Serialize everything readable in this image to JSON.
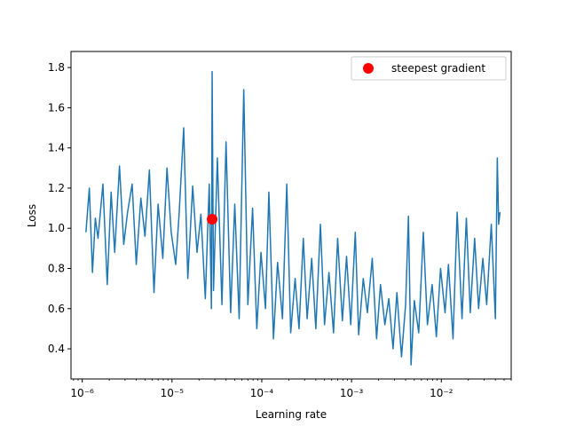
{
  "chart_data": {
    "type": "line",
    "xlabel": "Learning rate",
    "ylabel": "Loss",
    "x_scale": "log",
    "xlim": [
      7.5e-07,
      0.06
    ],
    "ylim": [
      0.25,
      1.88
    ],
    "grid": false,
    "legend_position": "top-right",
    "colors": {
      "line": "#1f77b4",
      "marker": "#ff0000"
    },
    "x_ticks": [
      {
        "value": 1e-06,
        "label": "10⁻⁶"
      },
      {
        "value": 1e-05,
        "label": "10⁻⁵"
      },
      {
        "value": 0.0001,
        "label": "10⁻⁴"
      },
      {
        "value": 0.001,
        "label": "10⁻³"
      },
      {
        "value": 0.01,
        "label": "10⁻²"
      }
    ],
    "y_ticks": [
      {
        "value": 0.4,
        "label": "0.4"
      },
      {
        "value": 0.6,
        "label": "0.6"
      },
      {
        "value": 0.8,
        "label": "0.8"
      },
      {
        "value": 1.0,
        "label": "1.0"
      },
      {
        "value": 1.2,
        "label": "1.2"
      },
      {
        "value": 1.4,
        "label": "1.4"
      },
      {
        "value": 1.6,
        "label": "1.6"
      },
      {
        "value": 1.8,
        "label": "1.8"
      }
    ],
    "series": [
      {
        "type": "line",
        "x": [
          1.1e-06,
          1.2e-06,
          1.3e-06,
          1.4e-06,
          1.5e-06,
          1.7e-06,
          1.9e-06,
          2.1e-06,
          2.3e-06,
          2.6e-06,
          2.9e-06,
          3.2e-06,
          3.6e-06,
          4e-06,
          4.5e-06,
          5e-06,
          5.6e-06,
          6.3e-06,
          7e-06,
          7.9e-06,
          8.8e-06,
          9.8e-06,
          1.1e-05,
          1.2e-05,
          1.35e-05,
          1.5e-05,
          1.7e-05,
          1.9e-05,
          2.1e-05,
          2.35e-05,
          2.6e-05,
          2.75e-05,
          2.8e-05,
          2.9e-05,
          3.2e-05,
          3.6e-05,
          4e-05,
          4.5e-05,
          5e-05,
          5.6e-05,
          6.3e-05,
          7e-05,
          7.9e-05,
          8.8e-05,
          9.8e-05,
          0.00011,
          0.00012,
          0.000135,
          0.00015,
          0.00017,
          0.00019,
          0.00021,
          0.000235,
          0.00026,
          0.00029,
          0.00032,
          0.00036,
          0.0004,
          0.00045,
          0.0005,
          0.00056,
          0.00063,
          0.0007,
          0.00079,
          0.00088,
          0.00098,
          0.0011,
          0.0012,
          0.00135,
          0.0015,
          0.0017,
          0.0019,
          0.0021,
          0.00235,
          0.0026,
          0.0029,
          0.0032,
          0.0036,
          0.004,
          0.0043,
          0.0046,
          0.005,
          0.0056,
          0.0063,
          0.007,
          0.0079,
          0.0088,
          0.0098,
          0.011,
          0.012,
          0.0135,
          0.015,
          0.017,
          0.019,
          0.021,
          0.0235,
          0.026,
          0.029,
          0.032,
          0.036,
          0.04,
          0.042,
          0.0435,
          0.045
        ],
        "y": [
          0.98,
          1.2,
          0.78,
          1.05,
          0.95,
          1.22,
          0.72,
          1.18,
          0.88,
          1.31,
          0.92,
          1.08,
          1.22,
          0.82,
          1.15,
          0.96,
          1.29,
          0.68,
          1.12,
          0.85,
          1.3,
          0.98,
          0.82,
          1.07,
          1.5,
          0.75,
          1.21,
          0.88,
          1.07,
          0.65,
          1.22,
          0.6,
          1.78,
          0.69,
          1.35,
          0.62,
          1.43,
          0.58,
          1.12,
          0.55,
          1.69,
          0.62,
          1.1,
          0.5,
          0.88,
          0.6,
          1.18,
          0.45,
          0.83,
          0.55,
          1.22,
          0.48,
          0.75,
          0.5,
          0.95,
          0.55,
          0.85,
          0.5,
          1.02,
          0.52,
          0.78,
          0.48,
          0.95,
          0.54,
          0.86,
          0.52,
          0.98,
          0.47,
          0.75,
          0.58,
          0.85,
          0.45,
          0.72,
          0.52,
          0.65,
          0.4,
          0.68,
          0.36,
          0.62,
          1.06,
          0.32,
          0.64,
          0.48,
          0.98,
          0.52,
          0.72,
          0.46,
          0.8,
          0.58,
          0.82,
          0.45,
          1.08,
          0.55,
          1.05,
          0.58,
          0.95,
          0.6,
          0.85,
          0.62,
          1.02,
          0.55,
          1.35,
          1.02,
          1.08
        ]
      },
      {
        "type": "scatter",
        "name": "steepest gradient",
        "x": [
          2.8e-05
        ],
        "y": [
          1.045
        ]
      }
    ]
  }
}
